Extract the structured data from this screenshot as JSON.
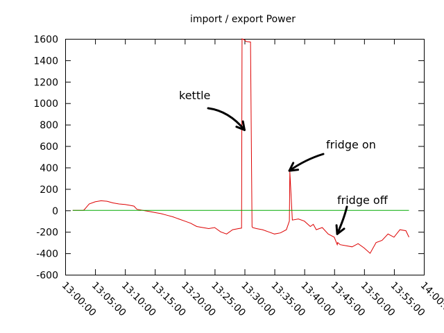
{
  "chart_data": {
    "type": "line",
    "title": "import / export Power",
    "xlabel": "",
    "ylabel": "",
    "ylim": [
      -600,
      1600
    ],
    "yticks": [
      -600,
      -400,
      -200,
      0,
      200,
      400,
      600,
      800,
      1000,
      1200,
      1400,
      1600
    ],
    "xlim": [
      "13:00:00",
      "14:00:00"
    ],
    "xticks": [
      "13:00:00",
      "13:05:00",
      "13:10:00",
      "13:15:00",
      "13:20:00",
      "13:25:00",
      "13:30:00",
      "13:35:00",
      "13:40:00",
      "13:45:00",
      "13:50:00",
      "13:55:00",
      "14:00:00"
    ],
    "grid": false,
    "legend": "none",
    "series": [
      {
        "color": "#dd0000",
        "x": [
          "13:01:15",
          "13:03:00",
          "13:03:10",
          "13:04:00",
          "13:05:00",
          "13:06:00",
          "13:07:00",
          "13:08:00",
          "13:09:00",
          "13:10:00",
          "13:11:00",
          "13:11:30",
          "13:12:00",
          "13:13:00",
          "13:14:00",
          "13:15:00",
          "13:16:00",
          "13:17:00",
          "13:18:00",
          "13:19:00",
          "13:20:00",
          "13:21:00",
          "13:22:00",
          "13:23:00",
          "13:24:00",
          "13:25:00",
          "13:26:00",
          "13:27:00",
          "13:28:00",
          "13:29:00",
          "13:29:30",
          "13:29:35",
          "13:30:00",
          "13:30:10",
          "13:30:20",
          "13:31:00",
          "13:31:15",
          "13:31:20",
          "13:32:00",
          "13:33:00",
          "13:34:00",
          "13:35:00",
          "13:36:00",
          "13:37:00",
          "13:37:30",
          "13:37:35",
          "13:38:00",
          "13:39:00",
          "13:40:00",
          "13:41:00",
          "13:41:30",
          "13:42:00",
          "13:43:00",
          "13:44:00",
          "13:45:00",
          "13:45:30",
          "13:45:35",
          "13:46:00",
          "13:47:00",
          "13:48:00",
          "13:49:00",
          "13:50:00",
          "13:51:00",
          "13:52:00",
          "13:53:00",
          "13:54:00",
          "13:55:00",
          "13:56:00",
          "13:57:00",
          "13:57:30"
        ],
        "y": [
          0,
          0,
          5,
          60,
          80,
          90,
          85,
          70,
          60,
          55,
          45,
          40,
          10,
          0,
          -10,
          -20,
          -30,
          -45,
          -60,
          -80,
          -100,
          -120,
          -150,
          -160,
          -170,
          -160,
          -200,
          -220,
          -180,
          -170,
          -165,
          1600,
          1590,
          1580,
          1575,
          1570,
          -150,
          -160,
          -170,
          -180,
          -200,
          -220,
          -210,
          -180,
          -100,
          360,
          -90,
          -80,
          -100,
          -150,
          -130,
          -180,
          -160,
          -220,
          -250,
          -320,
          -300,
          -320,
          -330,
          -340,
          -310,
          -350,
          -400,
          -300,
          -280,
          -220,
          -250,
          -180,
          -190,
          -250
        ]
      },
      {
        "color": "#00aa00",
        "x": [
          "13:01:15",
          "13:57:30"
        ],
        "y": [
          0,
          0
        ]
      }
    ],
    "annotations": [
      {
        "text": "kettle",
        "arrow_to": [
          "13:30:00",
          750
        ]
      },
      {
        "text": "fridge on",
        "arrow_to": [
          "13:37:30",
          370
        ]
      },
      {
        "text": "fridge off",
        "arrow_to": [
          "13:45:30",
          -220
        ]
      }
    ]
  }
}
